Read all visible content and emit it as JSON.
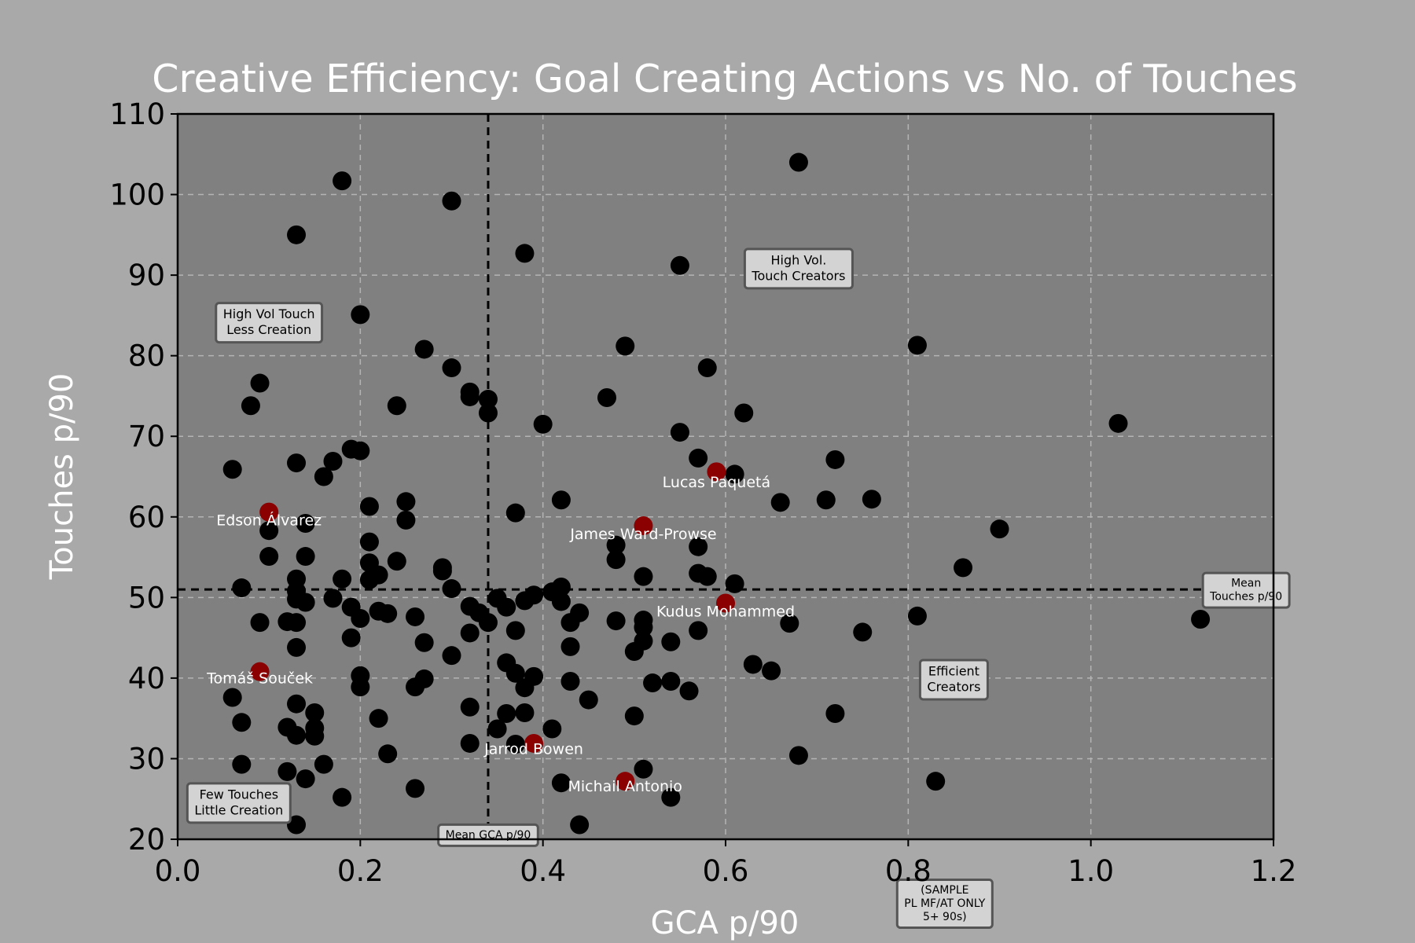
{
  "chart_data": {
    "type": "scatter",
    "title": "Creative Efficiency: Goal Creating Actions vs No. of Touches",
    "xlabel": "GCA p/90",
    "ylabel": "Touches p/90",
    "xlim": [
      0.0,
      1.2
    ],
    "ylim": [
      20,
      110
    ],
    "xticks": [
      "0.0",
      "0.2",
      "0.4",
      "0.6",
      "0.8",
      "1.0",
      "1.2"
    ],
    "xtick_values": [
      0.0,
      0.2,
      0.4,
      0.6,
      0.8,
      1.0,
      1.2
    ],
    "yticks": [
      "20",
      "30",
      "40",
      "50",
      "60",
      "70",
      "80",
      "90",
      "100",
      "110"
    ],
    "ytick_values": [
      20,
      30,
      40,
      50,
      60,
      70,
      80,
      90,
      100,
      110
    ],
    "grid": true,
    "colors": {
      "figure_bg": "#a9a9a9",
      "plot_bg": "#808080",
      "point": "#000000",
      "highlight": "#8b0000",
      "title": "#ffffff",
      "label": "#ffffff"
    },
    "mean_gca": 0.34,
    "mean_touches": 51,
    "points": [
      [
        0.18,
        101.7
      ],
      [
        0.3,
        99.2
      ],
      [
        0.13,
        95.0
      ],
      [
        0.38,
        92.7
      ],
      [
        0.55,
        91.2
      ],
      [
        0.68,
        104.0
      ],
      [
        0.2,
        85.1
      ],
      [
        0.27,
        80.8
      ],
      [
        0.3,
        78.5
      ],
      [
        0.49,
        81.2
      ],
      [
        0.58,
        78.5
      ],
      [
        0.81,
        81.3
      ],
      [
        0.09,
        76.6
      ],
      [
        0.08,
        73.8
      ],
      [
        0.24,
        73.8
      ],
      [
        0.32,
        75.5
      ],
      [
        0.32,
        74.9
      ],
      [
        0.34,
        74.6
      ],
      [
        0.34,
        72.9
      ],
      [
        0.47,
        74.8
      ],
      [
        0.62,
        72.9
      ],
      [
        1.03,
        71.6
      ],
      [
        0.4,
        71.5
      ],
      [
        0.55,
        70.5
      ],
      [
        0.06,
        65.9
      ],
      [
        0.13,
        66.7
      ],
      [
        0.16,
        65.0
      ],
      [
        0.17,
        66.9
      ],
      [
        0.19,
        68.4
      ],
      [
        0.2,
        68.2
      ],
      [
        0.57,
        67.3
      ],
      [
        0.61,
        65.3
      ],
      [
        0.72,
        67.1
      ],
      [
        0.14,
        59.2
      ],
      [
        0.1,
        58.3
      ],
      [
        0.21,
        61.3
      ],
      [
        0.25,
        61.9
      ],
      [
        0.25,
        59.6
      ],
      [
        0.37,
        60.5
      ],
      [
        0.42,
        62.1
      ],
      [
        0.66,
        61.8
      ],
      [
        0.71,
        62.1
      ],
      [
        0.76,
        62.2
      ],
      [
        0.9,
        58.5
      ],
      [
        0.1,
        55.1
      ],
      [
        0.14,
        55.1
      ],
      [
        0.21,
        56.9
      ],
      [
        0.21,
        54.3
      ],
      [
        0.24,
        54.5
      ],
      [
        0.29,
        53.7
      ],
      [
        0.29,
        53.3
      ],
      [
        0.48,
        56.5
      ],
      [
        0.48,
        54.7
      ],
      [
        0.57,
        56.3
      ],
      [
        0.57,
        53.0
      ],
      [
        0.58,
        52.6
      ],
      [
        0.86,
        53.7
      ],
      [
        0.13,
        52.3
      ],
      [
        0.18,
        52.3
      ],
      [
        0.21,
        52.2
      ],
      [
        0.22,
        52.8
      ],
      [
        0.07,
        51.2
      ],
      [
        0.13,
        50.8
      ],
      [
        0.13,
        49.8
      ],
      [
        0.14,
        49.4
      ],
      [
        0.17,
        49.9
      ],
      [
        0.19,
        48.8
      ],
      [
        0.3,
        51.1
      ],
      [
        0.32,
        48.9
      ],
      [
        0.33,
        48.1
      ],
      [
        0.35,
        49.9
      ],
      [
        0.36,
        48.8
      ],
      [
        0.38,
        49.6
      ],
      [
        0.39,
        50.3
      ],
      [
        0.41,
        50.7
      ],
      [
        0.42,
        51.3
      ],
      [
        0.42,
        49.5
      ],
      [
        0.51,
        52.6
      ],
      [
        0.61,
        51.7
      ],
      [
        0.2,
        47.4
      ],
      [
        0.22,
        48.3
      ],
      [
        0.23,
        48.0
      ],
      [
        0.09,
        46.9
      ],
      [
        0.12,
        47.0
      ],
      [
        0.13,
        46.9
      ],
      [
        0.26,
        47.6
      ],
      [
        0.34,
        46.9
      ],
      [
        0.37,
        45.9
      ],
      [
        0.43,
        46.9
      ],
      [
        0.44,
        48.1
      ],
      [
        0.48,
        47.1
      ],
      [
        0.51,
        47.2
      ],
      [
        0.51,
        46.3
      ],
      [
        0.67,
        46.8
      ],
      [
        0.81,
        47.7
      ],
      [
        1.12,
        47.3
      ],
      [
        0.19,
        45.0
      ],
      [
        0.13,
        43.8
      ],
      [
        0.27,
        44.4
      ],
      [
        0.32,
        45.6
      ],
      [
        0.51,
        44.6
      ],
      [
        0.5,
        43.3
      ],
      [
        0.54,
        44.5
      ],
      [
        0.57,
        45.9
      ],
      [
        0.75,
        45.7
      ],
      [
        0.3,
        42.8
      ],
      [
        0.43,
        43.9
      ],
      [
        0.36,
        41.9
      ],
      [
        0.63,
        41.7
      ],
      [
        0.65,
        40.9
      ],
      [
        0.2,
        40.3
      ],
      [
        0.2,
        38.9
      ],
      [
        0.26,
        38.9
      ],
      [
        0.27,
        39.9
      ],
      [
        0.37,
        40.6
      ],
      [
        0.38,
        38.8
      ],
      [
        0.39,
        40.2
      ],
      [
        0.43,
        39.6
      ],
      [
        0.52,
        39.4
      ],
      [
        0.54,
        39.6
      ],
      [
        0.56,
        38.4
      ],
      [
        0.06,
        37.6
      ],
      [
        0.13,
        36.8
      ],
      [
        0.15,
        35.7
      ],
      [
        0.22,
        35.0
      ],
      [
        0.32,
        36.4
      ],
      [
        0.36,
        35.6
      ],
      [
        0.38,
        35.7
      ],
      [
        0.45,
        37.3
      ],
      [
        0.5,
        35.3
      ],
      [
        0.72,
        35.6
      ],
      [
        0.07,
        34.5
      ],
      [
        0.12,
        33.9
      ],
      [
        0.13,
        32.9
      ],
      [
        0.15,
        33.8
      ],
      [
        0.15,
        32.8
      ],
      [
        0.35,
        33.7
      ],
      [
        0.41,
        33.7
      ],
      [
        0.32,
        31.9
      ],
      [
        0.37,
        31.8
      ],
      [
        0.23,
        30.6
      ],
      [
        0.68,
        30.4
      ],
      [
        0.07,
        29.3
      ],
      [
        0.12,
        28.4
      ],
      [
        0.14,
        27.5
      ],
      [
        0.16,
        29.3
      ],
      [
        0.51,
        28.7
      ],
      [
        0.42,
        27.0
      ],
      [
        0.83,
        27.2
      ],
      [
        0.18,
        25.2
      ],
      [
        0.26,
        26.3
      ],
      [
        0.54,
        25.2
      ],
      [
        0.13,
        21.8
      ],
      [
        0.44,
        21.8
      ]
    ],
    "highlighted": [
      {
        "name": "Lucas Paquetá",
        "x": 0.59,
        "y": 65.6,
        "lx": 0.59,
        "ly": 64.2
      },
      {
        "name": "Edson Álvarez",
        "x": 0.1,
        "y": 60.6,
        "lx": 0.1,
        "ly": 59.5
      },
      {
        "name": "James Ward-Prowse",
        "x": 0.51,
        "y": 58.9,
        "lx": 0.51,
        "ly": 57.8
      },
      {
        "name": "Kudus Mohammed",
        "x": 0.6,
        "y": 49.3,
        "lx": 0.6,
        "ly": 48.2
      },
      {
        "name": "Tomáš Souček",
        "x": 0.09,
        "y": 40.8,
        "lx": 0.09,
        "ly": 39.9
      },
      {
        "name": "Jarrod Bowen",
        "x": 0.39,
        "y": 31.9,
        "lx": 0.39,
        "ly": 31.1
      },
      {
        "name": "Michail Antonio",
        "x": 0.49,
        "y": 27.2,
        "lx": 0.49,
        "ly": 26.5
      }
    ],
    "annotations": [
      {
        "lines": [
          "High Vol.",
          "Touch Creators"
        ],
        "x": 0.68,
        "y": 90.8
      },
      {
        "lines": [
          "High Vol Touch",
          "Less Creation"
        ],
        "x": 0.1,
        "y": 84.1
      },
      {
        "lines": [
          "Mean",
          "Touches p/90"
        ],
        "x": 1.17,
        "y": 50.9
      },
      {
        "lines": [
          "Efficient",
          "Creators"
        ],
        "x": 0.85,
        "y": 39.8
      },
      {
        "lines": [
          "Few Touches",
          "Little Creation"
        ],
        "x": 0.067,
        "y": 24.5
      },
      {
        "lines": [
          "Mean GCA p/90"
        ],
        "x": 0.34,
        "y": 20.5
      },
      {
        "lines": [
          "(SAMPLE",
          "PL MF/AT ONLY",
          "5+ 90s)"
        ],
        "x": 0.84,
        "y": 12.0
      }
    ]
  }
}
